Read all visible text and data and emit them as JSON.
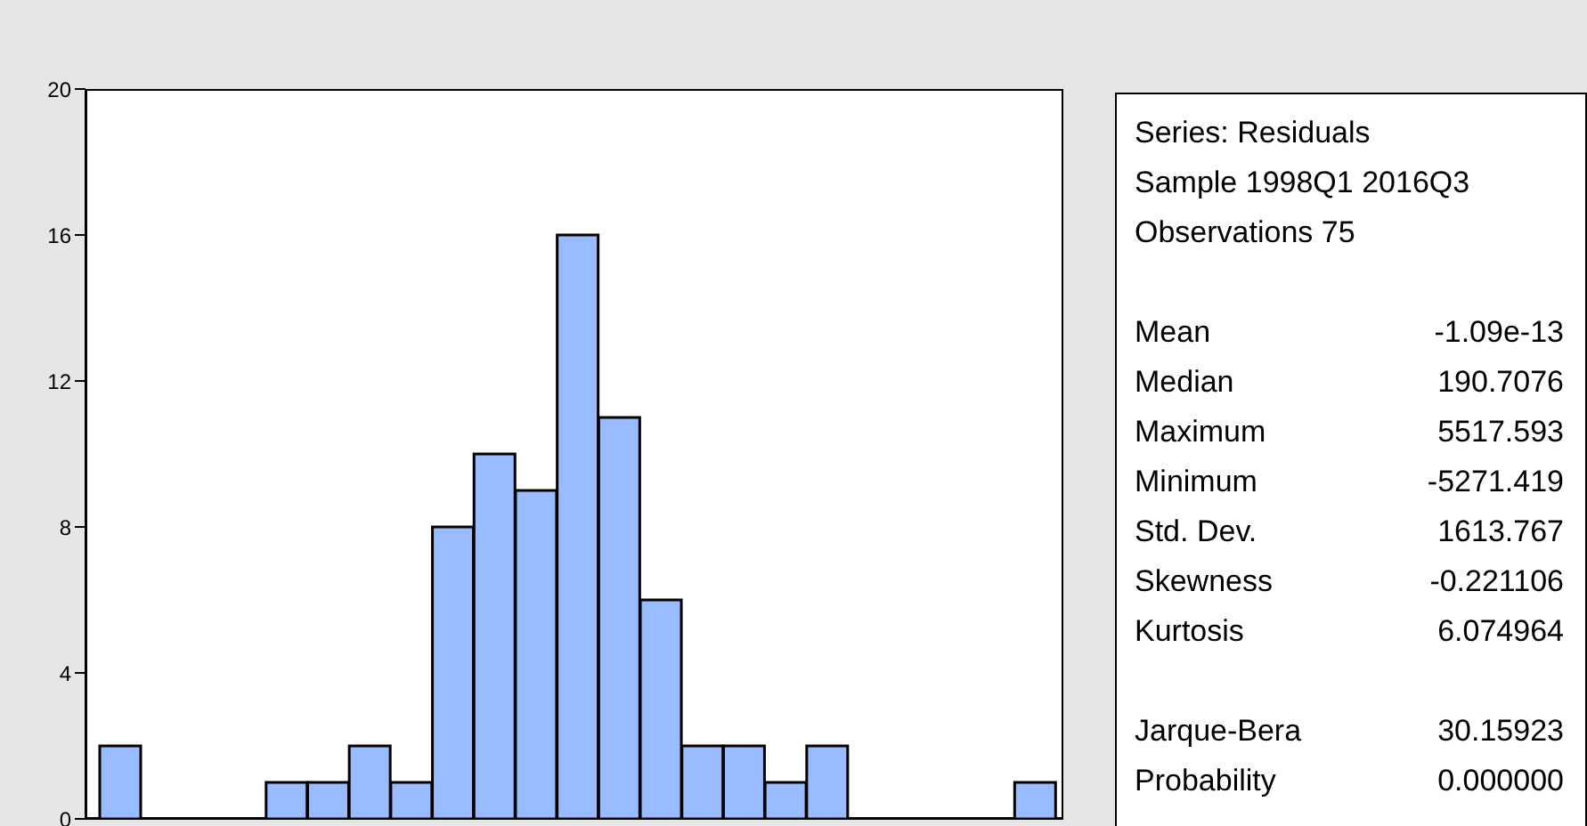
{
  "chart_data": [
    {
      "type": "bar",
      "categories": [
        null,
        null,
        null,
        null,
        null,
        null,
        null,
        null,
        null,
        null,
        null,
        null,
        null,
        null,
        null,
        null,
        null,
        null,
        null,
        null,
        null,
        null,
        null
      ],
      "values": [
        2,
        0,
        0,
        0,
        1,
        1,
        2,
        1,
        8,
        10,
        9,
        16,
        11,
        6,
        2,
        2,
        1,
        2,
        0,
        0,
        0,
        0,
        1
      ],
      "color": "#99bbff",
      "ylim": [
        0,
        20
      ],
      "yticks": [
        0,
        4,
        8,
        12,
        16,
        20
      ],
      "tick_labels": "y"
    },
    {
      "type": "other",
      "annotations": [
        "Series: Residuals",
        "Sample 1998Q1 2016Q3",
        "Observations 75",
        "Mean",
        "-1.09e-13",
        "Median",
        "190.7076",
        "Maximum",
        "5517.593",
        "Minimum",
        "-5271.419",
        "Std. Dev.",
        "1613.767",
        "Skewness",
        "-0.221106",
        "Kurtosis",
        "6.074964",
        "Jarque-Bera",
        "30.15923",
        "Probability",
        "0.000000"
      ]
    }
  ]
}
